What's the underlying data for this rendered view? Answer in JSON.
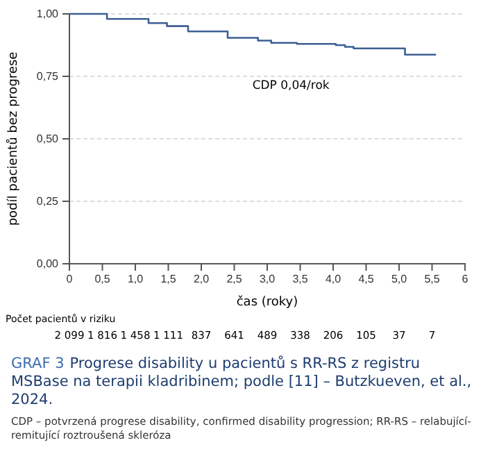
{
  "chart_data": {
    "type": "step",
    "title": "GRAF 3 Progrese disability u pacientů s RR-RS z registru MSBase na terapii kladribinem; podle [11] – Butzkueven, et al., 2024.",
    "xlabel": "čas (roky)",
    "ylabel": "podíl pacientů bez progrese",
    "xlim": [
      0,
      6
    ],
    "ylim": [
      0,
      1
    ],
    "xticks": [
      {
        "value": 0,
        "label": "0"
      },
      {
        "value": 0.5,
        "label": "0,5"
      },
      {
        "value": 1,
        "label": "1,0"
      },
      {
        "value": 1.5,
        "label": "1,5"
      },
      {
        "value": 2,
        "label": "2,0"
      },
      {
        "value": 2.5,
        "label": "2,5"
      },
      {
        "value": 3,
        "label": "3,0"
      },
      {
        "value": 3.5,
        "label": "3,5"
      },
      {
        "value": 4,
        "label": "4,0"
      },
      {
        "value": 4.5,
        "label": "4,5"
      },
      {
        "value": 5,
        "label": "5,0"
      },
      {
        "value": 5.5,
        "label": "5,5"
      },
      {
        "value": 6,
        "label": "6"
      }
    ],
    "yticks": [
      {
        "value": 0,
        "label": "0,00"
      },
      {
        "value": 0.25,
        "label": "0,25"
      },
      {
        "value": 0.5,
        "label": "0,50"
      },
      {
        "value": 0.75,
        "label": "0,75"
      },
      {
        "value": 1,
        "label": "1,00"
      }
    ],
    "grid": "y",
    "line_style": "solid",
    "series": [
      {
        "color": "#3d5f94",
        "x": [
          0,
          0.28,
          0.57,
          1.2,
          1.48,
          1.8,
          2.4,
          2.86,
          3.06,
          3.45,
          4.04,
          4.18,
          4.31,
          5.09,
          5.56
        ],
        "values": [
          1,
          1,
          0.98,
          0.963,
          0.951,
          0.93,
          0.904,
          0.893,
          0.884,
          0.88,
          0.875,
          0.868,
          0.862,
          0.837,
          0.837
        ]
      }
    ],
    "annotations": [
      "CDP 0,04/rok",
      "Počet pacientů v riziku",
      "CDP – potvrzená progrese disability, confirmed disability progression; RR-RS – relabující-remitující roztroušená skleróza",
      "2 099",
      "1 816",
      "1 458",
      "1 111",
      "837",
      "641",
      "489",
      "338",
      "206",
      "105",
      "37",
      "7"
    ]
  }
}
